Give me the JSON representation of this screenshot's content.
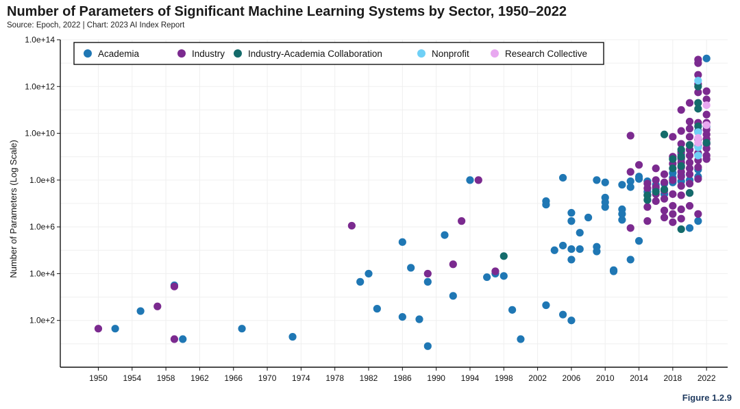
{
  "header": {
    "title": "Number of Parameters of Significant Machine Learning Systems by Sector, 1950–2022",
    "source": "Source: Epoch, 2022 | Chart: 2023 AI Index Report"
  },
  "footer": {
    "figure": "Figure 1.2.9"
  },
  "colors": {
    "Academia": "#1f77b4",
    "Industry": "#7b2a8f",
    "Industry-Academia Collaboration": "#146b6b",
    "Nonprofit": "#6fd0f6",
    "Research Collective": "#e8a8f0"
  },
  "chart_data": {
    "type": "scatter",
    "title": "Number of Parameters of Significant Machine Learning Systems by Sector, 1950–2022",
    "xlabel": "",
    "ylabel": "Number of Parameters (Log Scale)",
    "y_scale": "log",
    "xlim": [
      1945.5,
      2024.5
    ],
    "ylim_exponent": [
      0,
      14
    ],
    "x_ticks": [
      1950,
      1954,
      1958,
      1962,
      1966,
      1970,
      1974,
      1978,
      1982,
      1986,
      1990,
      1994,
      1998,
      2002,
      2006,
      2010,
      2014,
      2018,
      2022
    ],
    "y_ticks": [
      {
        "exp": 2,
        "label": "1.0e+2"
      },
      {
        "exp": 4,
        "label": "1.0e+4"
      },
      {
        "exp": 6,
        "label": "1.0e+6"
      },
      {
        "exp": 8,
        "label": "1.0e+8"
      },
      {
        "exp": 10,
        "label": "1.0e+10"
      },
      {
        "exp": 12,
        "label": "1.0e+12"
      },
      {
        "exp": 14,
        "label": "1.0e+14"
      }
    ],
    "legend_position": "top",
    "series": [
      {
        "name": "Academia",
        "points": [
          [
            1952,
            1.65
          ],
          [
            1955,
            2.4
          ],
          [
            1959,
            3.5
          ],
          [
            1960,
            1.2
          ],
          [
            1967,
            1.65
          ],
          [
            1973,
            1.3
          ],
          [
            1981,
            3.65
          ],
          [
            1982,
            4.0
          ],
          [
            1983,
            2.5
          ],
          [
            1986,
            5.35
          ],
          [
            1986,
            2.15
          ],
          [
            1987,
            4.25
          ],
          [
            1988,
            2.05
          ],
          [
            1989,
            3.65
          ],
          [
            1989,
            0.9
          ],
          [
            1991,
            5.65
          ],
          [
            1992,
            3.05
          ],
          [
            1994,
            8.0
          ],
          [
            1996,
            3.85
          ],
          [
            1997,
            4.0
          ],
          [
            1998,
            3.9
          ],
          [
            1999,
            2.45
          ],
          [
            2000,
            1.2
          ],
          [
            2003,
            7.1
          ],
          [
            2003,
            6.95
          ],
          [
            2003,
            2.65
          ],
          [
            2004,
            5.0
          ],
          [
            2005,
            8.1
          ],
          [
            2005,
            5.2
          ],
          [
            2005,
            2.25
          ],
          [
            2006,
            6.6
          ],
          [
            2006,
            6.25
          ],
          [
            2006,
            5.05
          ],
          [
            2006,
            4.6
          ],
          [
            2006,
            2.0
          ],
          [
            2007,
            5.75
          ],
          [
            2007,
            5.05
          ],
          [
            2008,
            6.4
          ],
          [
            2009,
            8.0
          ],
          [
            2009,
            5.15
          ],
          [
            2009,
            4.95
          ],
          [
            2010,
            7.9
          ],
          [
            2010,
            7.25
          ],
          [
            2010,
            7.05
          ],
          [
            2010,
            6.85
          ],
          [
            2011,
            4.15
          ],
          [
            2011,
            4.1
          ],
          [
            2012,
            7.8
          ],
          [
            2012,
            6.75
          ],
          [
            2012,
            6.55
          ],
          [
            2012,
            6.3
          ],
          [
            2013,
            7.95
          ],
          [
            2013,
            7.7
          ],
          [
            2013,
            4.6
          ],
          [
            2014,
            8.15
          ],
          [
            2014,
            8.05
          ],
          [
            2014,
            5.4
          ],
          [
            2015,
            7.95
          ],
          [
            2015,
            7.5
          ],
          [
            2016,
            7.8
          ],
          [
            2016,
            7.6
          ],
          [
            2017,
            7.85
          ],
          [
            2017,
            7.4
          ],
          [
            2018,
            8.3
          ],
          [
            2018,
            8.1
          ],
          [
            2018,
            7.9
          ],
          [
            2019,
            9.1
          ],
          [
            2019,
            8.9
          ],
          [
            2019,
            8.2
          ],
          [
            2019,
            7.95
          ],
          [
            2020,
            9.3
          ],
          [
            2020,
            8.0
          ],
          [
            2020,
            5.95
          ],
          [
            2021,
            10.1
          ],
          [
            2021,
            9.1
          ],
          [
            2021,
            8.45
          ],
          [
            2021,
            8.15
          ],
          [
            2021,
            6.25
          ],
          [
            2022,
            13.2
          ],
          [
            2022,
            10.3
          ],
          [
            2022,
            9.55
          ]
        ]
      },
      {
        "name": "Industry",
        "points": [
          [
            1950,
            1.65
          ],
          [
            1957,
            2.6
          ],
          [
            1959,
            3.45
          ],
          [
            1959,
            1.2
          ],
          [
            1980,
            6.05
          ],
          [
            1989,
            4.0
          ],
          [
            1992,
            4.4
          ],
          [
            1993,
            6.25
          ],
          [
            1995,
            8.0
          ],
          [
            1997,
            4.1
          ],
          [
            2013,
            9.9
          ],
          [
            2013,
            8.35
          ],
          [
            2013,
            5.95
          ],
          [
            2014,
            8.65
          ],
          [
            2015,
            7.85
          ],
          [
            2015,
            7.65
          ],
          [
            2015,
            7.35
          ],
          [
            2015,
            6.85
          ],
          [
            2015,
            6.25
          ],
          [
            2016,
            8.5
          ],
          [
            2016,
            8.0
          ],
          [
            2016,
            7.7
          ],
          [
            2016,
            7.4
          ],
          [
            2016,
            7.1
          ],
          [
            2017,
            8.25
          ],
          [
            2017,
            7.9
          ],
          [
            2017,
            7.55
          ],
          [
            2017,
            7.2
          ],
          [
            2017,
            6.7
          ],
          [
            2017,
            6.4
          ],
          [
            2018,
            9.85
          ],
          [
            2018,
            9.0
          ],
          [
            2018,
            8.7
          ],
          [
            2018,
            8.0
          ],
          [
            2018,
            7.4
          ],
          [
            2018,
            6.9
          ],
          [
            2018,
            6.55
          ],
          [
            2018,
            6.2
          ],
          [
            2019,
            11.0
          ],
          [
            2019,
            10.1
          ],
          [
            2019,
            9.55
          ],
          [
            2019,
            9.2
          ],
          [
            2019,
            8.95
          ],
          [
            2019,
            8.75
          ],
          [
            2019,
            8.55
          ],
          [
            2019,
            8.35
          ],
          [
            2019,
            8.15
          ],
          [
            2019,
            7.75
          ],
          [
            2019,
            7.35
          ],
          [
            2019,
            6.75
          ],
          [
            2019,
            6.35
          ],
          [
            2020,
            11.3
          ],
          [
            2020,
            10.5
          ],
          [
            2020,
            10.2
          ],
          [
            2020,
            9.85
          ],
          [
            2020,
            9.5
          ],
          [
            2020,
            9.3
          ],
          [
            2020,
            9.05
          ],
          [
            2020,
            8.75
          ],
          [
            2020,
            8.5
          ],
          [
            2020,
            8.25
          ],
          [
            2020,
            7.85
          ],
          [
            2020,
            7.45
          ],
          [
            2020,
            6.9
          ],
          [
            2021,
            13.15
          ],
          [
            2021,
            13.0
          ],
          [
            2021,
            12.5
          ],
          [
            2021,
            12.1
          ],
          [
            2021,
            11.75
          ],
          [
            2021,
            11.3
          ],
          [
            2021,
            10.45
          ],
          [
            2021,
            10.05
          ],
          [
            2021,
            9.75
          ],
          [
            2021,
            9.45
          ],
          [
            2021,
            9.15
          ],
          [
            2021,
            8.85
          ],
          [
            2021,
            8.55
          ],
          [
            2021,
            8.05
          ],
          [
            2021,
            6.55
          ],
          [
            2022,
            11.8
          ],
          [
            2022,
            11.45
          ],
          [
            2022,
            10.8
          ],
          [
            2022,
            10.45
          ],
          [
            2022,
            10.15
          ],
          [
            2022,
            9.95
          ],
          [
            2022,
            9.75
          ],
          [
            2022,
            9.55
          ],
          [
            2022,
            9.35
          ],
          [
            2022,
            9.05
          ],
          [
            2022,
            8.9
          ]
        ]
      },
      {
        "name": "Industry-Academia Collaboration",
        "points": [
          [
            1998,
            4.75
          ],
          [
            2015,
            7.35
          ],
          [
            2015,
            7.15
          ],
          [
            2016,
            7.5
          ],
          [
            2017,
            9.95
          ],
          [
            2017,
            7.6
          ],
          [
            2018,
            8.9
          ],
          [
            2018,
            8.5
          ],
          [
            2019,
            9.3
          ],
          [
            2019,
            9.0
          ],
          [
            2019,
            8.6
          ],
          [
            2019,
            5.9
          ],
          [
            2020,
            9.5
          ],
          [
            2020,
            7.45
          ],
          [
            2021,
            12.0
          ],
          [
            2021,
            11.3
          ],
          [
            2021,
            11.05
          ],
          [
            2021,
            10.3
          ],
          [
            2022,
            9.6
          ]
        ]
      },
      {
        "name": "Nonprofit",
        "points": [
          [
            2021,
            12.25
          ],
          [
            2021,
            10.05
          ],
          [
            2021,
            9.4
          ],
          [
            2021,
            9.05
          ]
        ]
      },
      {
        "name": "Research Collective",
        "points": [
          [
            2021,
            9.8
          ],
          [
            2021,
            9.6
          ],
          [
            2022,
            11.2
          ],
          [
            2022,
            10.35
          ]
        ]
      }
    ]
  }
}
